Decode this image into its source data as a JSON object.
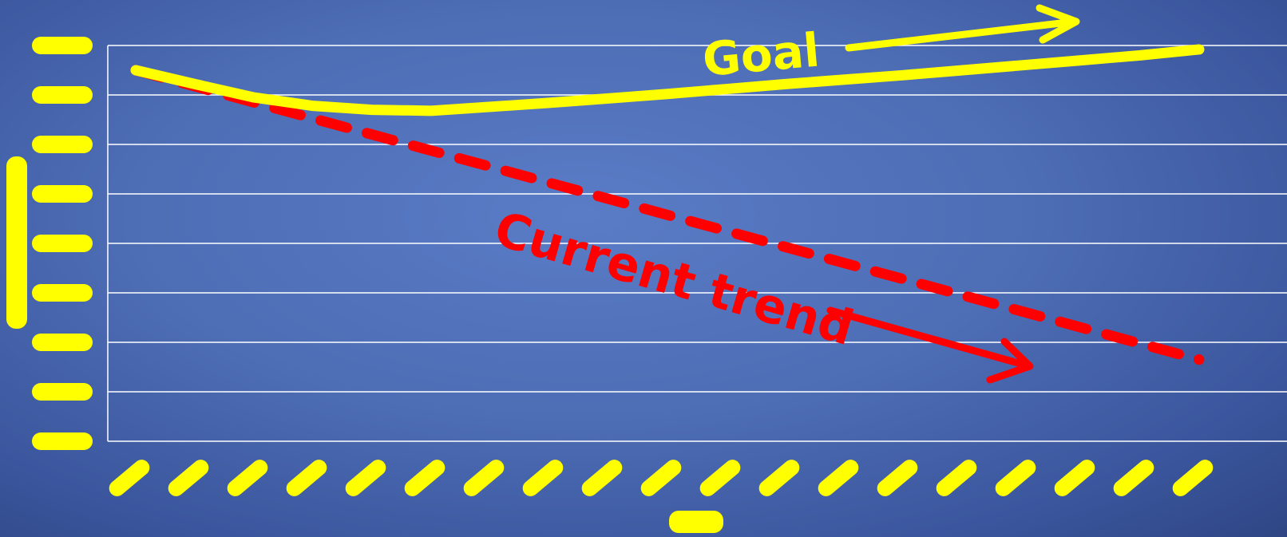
{
  "chart_data": {
    "type": "line",
    "title": "",
    "xlabel": "",
    "ylabel": "",
    "tick_labels_legible": false,
    "y_tick_count": 9,
    "x_tick_count": 19,
    "grid": true,
    "series": [
      {
        "role": "goal",
        "style": "solid",
        "color": "#ffff00",
        "x": [
          0,
          1,
          2,
          3,
          4,
          5,
          6,
          7,
          8,
          9,
          10,
          11,
          12,
          13,
          14,
          15,
          16,
          17,
          18
        ],
        "y": [
          7.5,
          7.22,
          6.95,
          6.78,
          6.7,
          6.68,
          6.76,
          6.84,
          6.93,
          7.02,
          7.12,
          7.22,
          7.31,
          7.4,
          7.5,
          7.6,
          7.7,
          7.8,
          7.92
        ]
      },
      {
        "role": "current-trend",
        "style": "dashed",
        "color": "#ff0000",
        "x": [
          0,
          18
        ],
        "y": [
          7.5,
          1.65
        ]
      }
    ],
    "annotations": [
      {
        "text": "Goal",
        "color": "#ffff00"
      },
      {
        "text": "Current trend",
        "color": "#ff0000"
      }
    ]
  }
}
